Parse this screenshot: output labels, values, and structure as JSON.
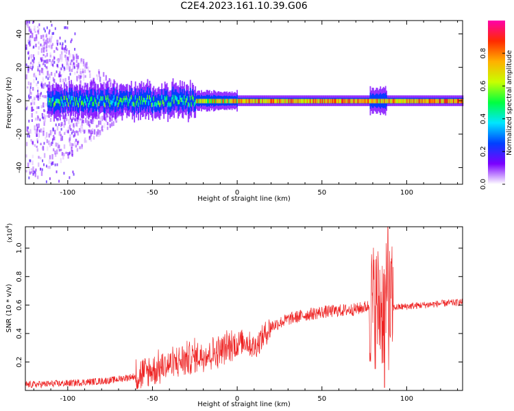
{
  "title": "C2E4.2023.161.10.39.G06",
  "chart_data": [
    {
      "type": "heatmap",
      "xlabel": "Height of straight line (km)",
      "ylabel": "Frequency (Hz)",
      "xlim": [
        -125,
        133
      ],
      "ylim": [
        -50,
        48
      ],
      "xticks": [
        -100,
        -50,
        0,
        50,
        100
      ],
      "yticks": [
        -40,
        -20,
        0,
        20,
        40
      ],
      "ridge_frequency_hz": 0,
      "colorbar": {
        "label": "Normalized spectral amplitude",
        "range": [
          0.0,
          1.0
        ],
        "ticks": [
          "0.0",
          "0.2",
          "0.4",
          "0.6",
          "0.8"
        ],
        "colors": [
          "#ffffff",
          "#7b00ff",
          "#0040ff",
          "#00e6ff",
          "#00ff40",
          "#c8ff00",
          "#ffb000",
          "#ff2a00",
          "#ff00aa"
        ]
      },
      "features": {
        "noisy_segment_km": [
          -125,
          -25
        ],
        "tonal_segment_km": [
          -25,
          133
        ],
        "disturbance_km": [
          78,
          88
        ]
      }
    },
    {
      "type": "line",
      "xlabel": "Height of straight line (km)",
      "ylabel": "SNR (10 * v/v)",
      "scale_note": "(x10",
      "scale_exp": "4",
      "color": "#ee2222",
      "xlim": [
        -125,
        133
      ],
      "ylim": [
        0.0,
        1.15
      ],
      "xticks": [
        -100,
        -50,
        0,
        50,
        100
      ],
      "yticks": [
        0.2,
        0.4,
        0.6,
        0.8,
        1.0
      ],
      "ytick_labels": [
        "0.2",
        "0.4",
        "0.6",
        "0.8",
        "1.0"
      ],
      "trend_points": {
        "x": [
          -125,
          -100,
          -75,
          -60,
          -50,
          -40,
          -30,
          -20,
          -10,
          0,
          5,
          10,
          20,
          30,
          40,
          50,
          60,
          70,
          80,
          90,
          100,
          110,
          120,
          133
        ],
        "y": [
          0.04,
          0.05,
          0.07,
          0.1,
          0.14,
          0.18,
          0.22,
          0.25,
          0.28,
          0.33,
          0.35,
          0.3,
          0.45,
          0.5,
          0.53,
          0.55,
          0.56,
          0.57,
          0.6,
          0.58,
          0.59,
          0.6,
          0.61,
          0.62
        ]
      },
      "annotated_extremes": {
        "peak": {
          "x": 89,
          "y": 1.15
        },
        "trough": {
          "x": 87,
          "y": 0.02
        }
      }
    }
  ]
}
